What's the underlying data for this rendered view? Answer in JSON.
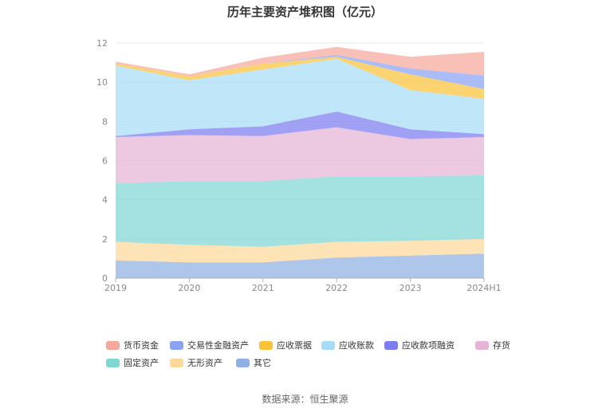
{
  "chart_data": {
    "type": "area",
    "stacked": true,
    "title": "历年主要资产堆积图（亿元）",
    "categories": [
      "2019",
      "2020",
      "2021",
      "2022",
      "2023",
      "2024H1"
    ],
    "ylim": [
      0,
      12
    ],
    "yticks": [
      "0",
      "2",
      "4",
      "6",
      "8",
      "10",
      "12"
    ],
    "grid": true,
    "legend_position": "bottom",
    "series": [
      {
        "name": "其它",
        "color": "#8fb0e0",
        "values": [
          0.9,
          0.8,
          0.8,
          1.05,
          1.15,
          1.25
        ]
      },
      {
        "name": "无形资产",
        "color": "#fdd89a",
        "values": [
          0.95,
          0.9,
          0.8,
          0.8,
          0.75,
          0.75
        ]
      },
      {
        "name": "固定资产",
        "color": "#7fd7d4",
        "values": [
          3.0,
          3.25,
          3.35,
          3.35,
          3.3,
          3.25
        ]
      },
      {
        "name": "存货",
        "color": "#e6b3d6",
        "values": [
          2.35,
          2.35,
          2.3,
          2.5,
          1.9,
          1.95
        ]
      },
      {
        "name": "应收款项融资",
        "color": "#7b7cf0",
        "values": [
          0.05,
          0.3,
          0.5,
          0.8,
          0.5,
          0.15
        ]
      },
      {
        "name": "应收账款",
        "color": "#a6ddf6",
        "values": [
          3.6,
          2.5,
          2.9,
          2.7,
          2.0,
          1.8
        ]
      },
      {
        "name": "应收票据",
        "color": "#fbc23a",
        "values": [
          0.1,
          0.2,
          0.3,
          0.1,
          0.8,
          0.5
        ]
      },
      {
        "name": "交易性金融资产",
        "color": "#8aa3f7",
        "values": [
          0.0,
          0.0,
          0.0,
          0.1,
          0.3,
          0.7
        ]
      },
      {
        "name": "货币资金",
        "color": "#f6a89d",
        "values": [
          0.1,
          0.1,
          0.3,
          0.4,
          0.6,
          1.2
        ]
      }
    ],
    "legend_order": [
      "货币资金",
      "交易性金融资产",
      "应收票据",
      "应收账款",
      "应收款项融资",
      "存货",
      "固定资产",
      "无形资产",
      "其它"
    ]
  },
  "source": "数据来源：恒生聚源"
}
